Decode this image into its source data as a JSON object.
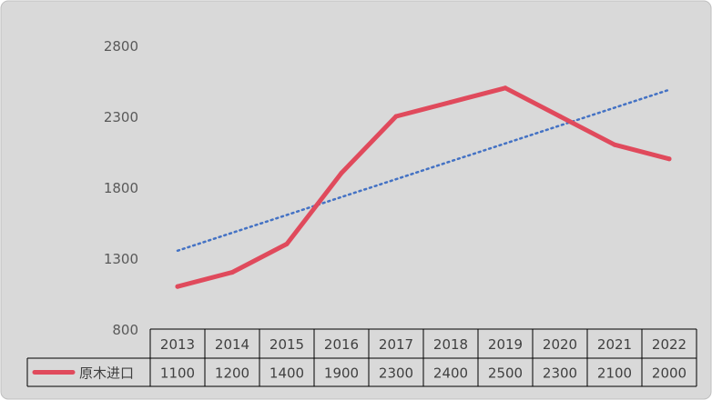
{
  "chart_data": {
    "type": "line",
    "title": "",
    "xlabel": "",
    "ylabel": "",
    "categories": [
      "2013",
      "2014",
      "2015",
      "2016",
      "2017",
      "2018",
      "2019",
      "2020",
      "2021",
      "2022"
    ],
    "series": [
      {
        "name": "原木进口",
        "values": [
          1100,
          1200,
          1400,
          1900,
          2300,
          2400,
          2500,
          2300,
          2100,
          2000
        ],
        "color": "#e04a5c"
      }
    ],
    "trendline": {
      "type": "linear",
      "color": "#4472c4",
      "style": "dotted"
    },
    "ylim": [
      800,
      2800
    ],
    "yticks": [
      800,
      1300,
      1800,
      2300,
      2800
    ],
    "grid": false,
    "legend": "data-table",
    "data_table": true,
    "background": "#d9d9d9"
  }
}
